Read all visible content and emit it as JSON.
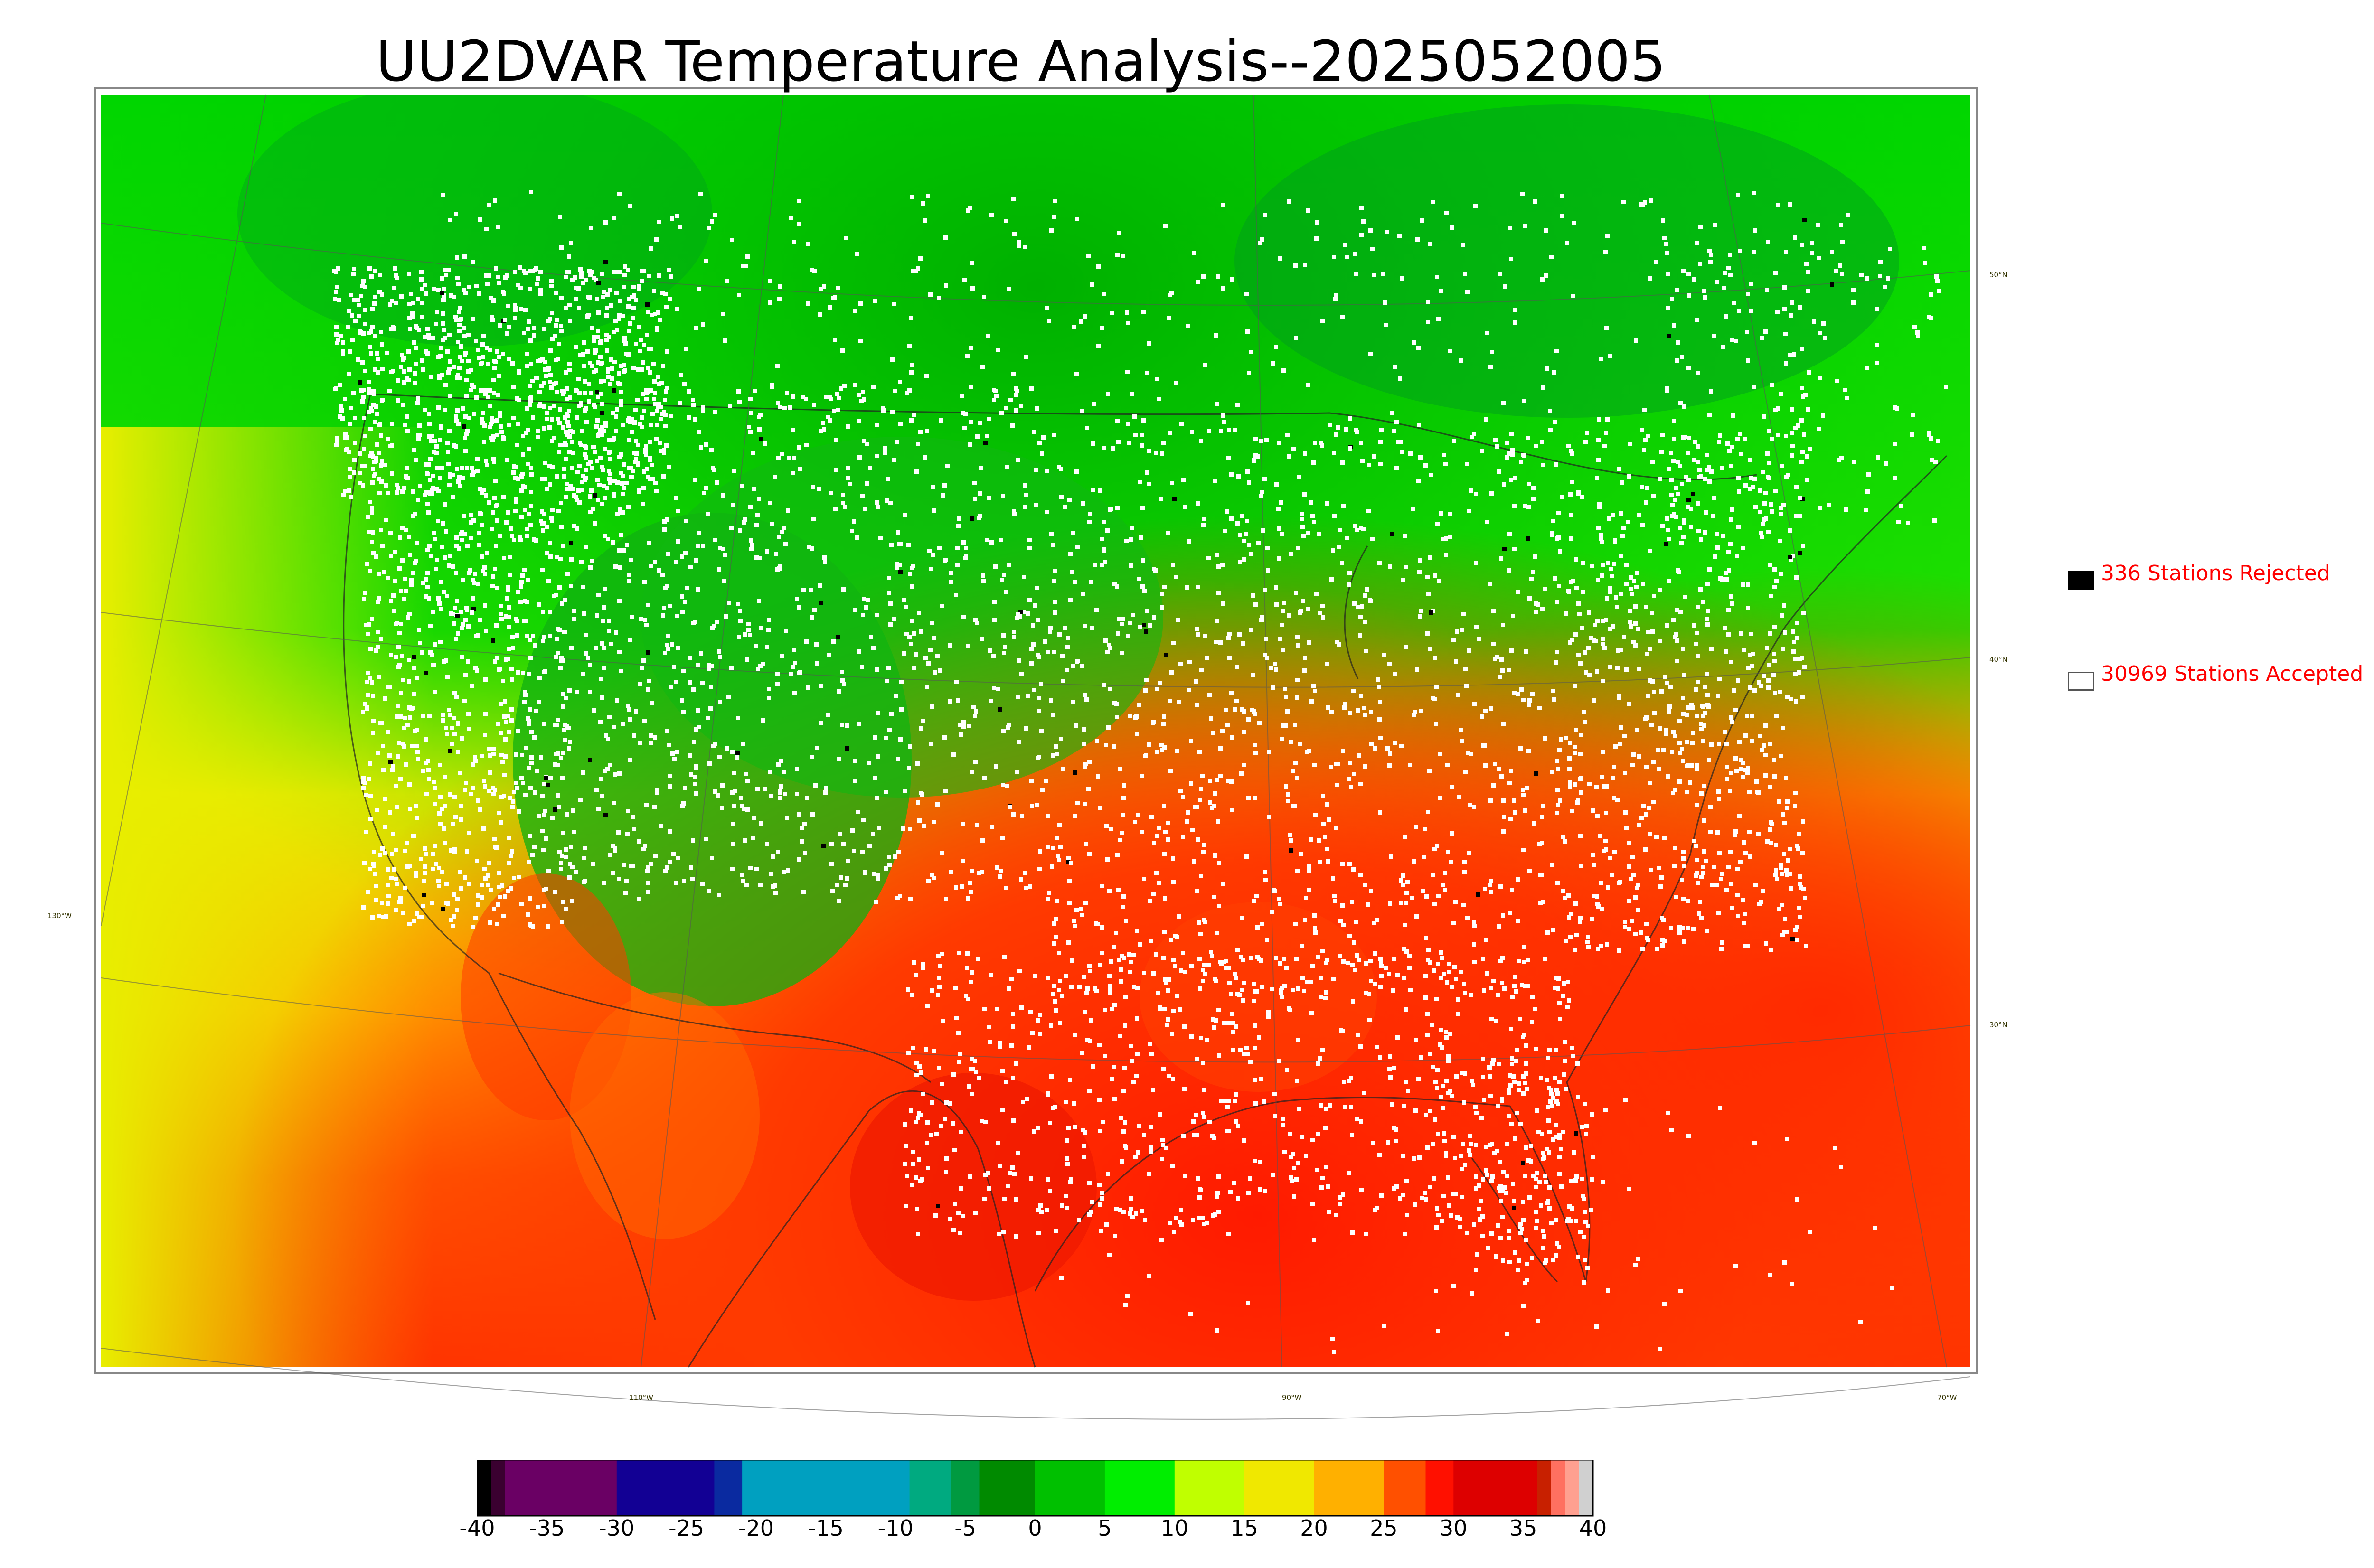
{
  "title": "UU2DVAR Temperature Analysis--2025052005",
  "legend": {
    "rejected": {
      "label": "336 Stations Rejected",
      "color": "#000000"
    },
    "accepted": {
      "label": "30969 Stations Accepted",
      "color": "#ffffff"
    },
    "text_color": "#ff0000"
  },
  "colorbar": {
    "ticks": [
      "-40",
      "-35",
      "-30",
      "-25",
      "-20",
      "-15",
      "-10",
      "-5",
      "0",
      "5",
      "10",
      "15",
      "20",
      "25",
      "30",
      "35",
      "40"
    ],
    "range": [
      -40,
      40
    ],
    "segments": [
      {
        "from": -40,
        "to": -39,
        "color": "#000000"
      },
      {
        "from": -39,
        "to": -38,
        "color": "#3a0030"
      },
      {
        "from": -38,
        "to": -30,
        "color": "#6a0064"
      },
      {
        "from": -30,
        "to": -23,
        "color": "#120094"
      },
      {
        "from": -23,
        "to": -21,
        "color": "#0a2aa0"
      },
      {
        "from": -21,
        "to": -9,
        "color": "#00a0c0"
      },
      {
        "from": -9,
        "to": -6,
        "color": "#00aa80"
      },
      {
        "from": -6,
        "to": -4,
        "color": "#009a40"
      },
      {
        "from": -4,
        "to": 0,
        "color": "#008a00"
      },
      {
        "from": 0,
        "to": 5,
        "color": "#00c000"
      },
      {
        "from": 5,
        "to": 10,
        "color": "#00ee00"
      },
      {
        "from": 10,
        "to": 15,
        "color": "#c0ff00"
      },
      {
        "from": 15,
        "to": 20,
        "color": "#f0e800"
      },
      {
        "from": 20,
        "to": 25,
        "color": "#ffb000"
      },
      {
        "from": 25,
        "to": 28,
        "color": "#ff5000"
      },
      {
        "from": 28,
        "to": 30,
        "color": "#ff1000"
      },
      {
        "from": 30,
        "to": 36,
        "color": "#dd0000"
      },
      {
        "from": 36,
        "to": 37,
        "color": "#c82000"
      },
      {
        "from": 37,
        "to": 38,
        "color": "#ff7060"
      },
      {
        "from": 38,
        "to": 39,
        "color": "#ffa090"
      },
      {
        "from": 39,
        "to": 40,
        "color": "#d0d0d0"
      }
    ]
  },
  "graticule_labels": {
    "lat_50": "50°N",
    "lat_40": "40°N",
    "lat_30": "30°N",
    "lon_130": "130°W",
    "lon_110": "110°W",
    "lon_90": "90°W",
    "lon_70": "70°W"
  }
}
